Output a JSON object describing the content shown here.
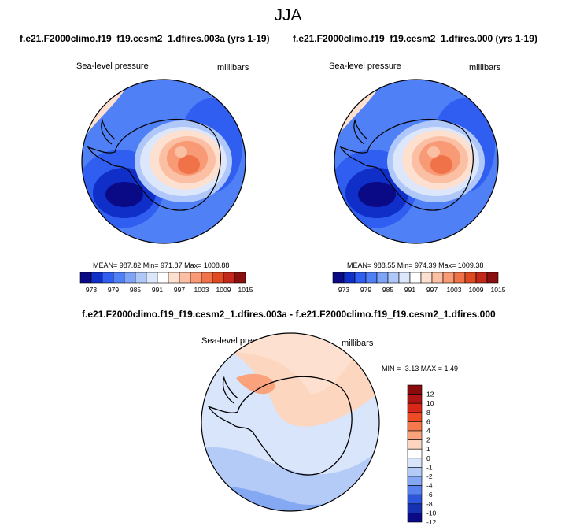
{
  "title": "JJA",
  "panels": [
    {
      "case_title": "f.e21.F2000climo.f19_f19.cesm2_1.dfires.003a (yrs 1-19)",
      "variable": "Sea-level pressure",
      "units": "millibars",
      "stats": "MEAN= 987.82  Min= 971.87  Max= 1008.88",
      "colorbar_labels": [
        "973",
        "979",
        "985",
        "991",
        "997",
        "1003",
        "1009",
        "1015"
      ]
    },
    {
      "case_title": "f.e21.F2000climo.f19_f19.cesm2_1.dfires.000 (yrs 1-19)",
      "variable": "Sea-level pressure",
      "units": "millibars",
      "stats": "MEAN= 988.55  Min= 974.39  Max= 1009.38",
      "colorbar_labels": [
        "973",
        "979",
        "985",
        "991",
        "997",
        "1003",
        "1009",
        "1015"
      ]
    }
  ],
  "diff": {
    "case_title": "f.e21.F2000climo.f19_f19.cesm2_1.dfires.003a - f.e21.F2000climo.f19_f19.cesm2_1.dfires.000",
    "variable": "Sea-level pressure",
    "units": "millibars",
    "stats": "MIN = -3.13 MAX =  1.49",
    "colorbar_labels": [
      "12",
      "10",
      "8",
      "6",
      "4",
      "2",
      "1",
      "0",
      "-1",
      "-2",
      "-4",
      "-6",
      "-8",
      "-10",
      "-12"
    ]
  },
  "colors": {
    "abs_scale": [
      "#0a0a86",
      "#0f2fc8",
      "#2f5ef0",
      "#4f80f5",
      "#7ea4f7",
      "#afc8f9",
      "#dce7fb",
      "#ffffff",
      "#fde0d0",
      "#fbbfa3",
      "#f79a75",
      "#f07248",
      "#e04a22",
      "#c2291a",
      "#8a0f0f"
    ],
    "diff_scale": [
      "#8a0b0b",
      "#b01515",
      "#d8281a",
      "#ee4a24",
      "#f6784d",
      "#f9a27c",
      "#fcd6bf",
      "#ffffff",
      "#d8e5fb",
      "#b4cbf7",
      "#85a8f3",
      "#5882ee",
      "#2e56dd",
      "#1631b2",
      "#0a0a86"
    ]
  }
}
